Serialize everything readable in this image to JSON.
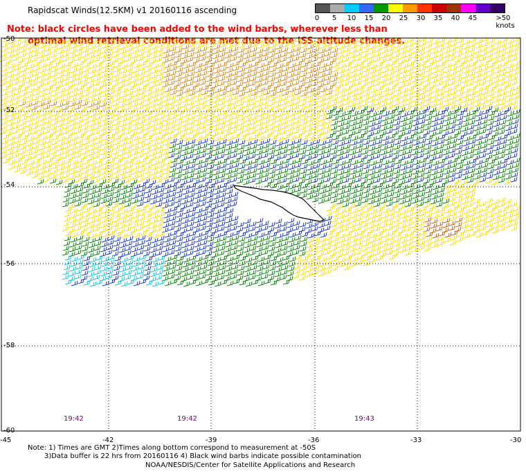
{
  "title": "Rapidscat Winds(12.5KM) v1 20160116 ascending",
  "note_line1": "Note: black circles have been added to the wind barbs, wherever less than",
  "note_line2": "optimal wind retrieval conditions are met due to the ISS altitude changes.",
  "legend": {
    "labels": [
      "0",
      "5",
      "10",
      "15",
      "20",
      "25",
      "30",
      "35",
      "40",
      "45",
      ">50 knots"
    ],
    "colors": [
      "#555555",
      "#aaaaaa",
      "#00ccff",
      "#3366ff",
      "#009900",
      "#ffff00",
      "#ff9900",
      "#ff3300",
      "#cc0000",
      "#993300",
      "#ff00ff",
      "#6600cc",
      "#330066"
    ]
  },
  "lat_labels": [
    "-50",
    "-52",
    "-54",
    "-56",
    "-58",
    "-60"
  ],
  "lon_labels": [
    "-45",
    "-42",
    "-39",
    "-36",
    "-33",
    "-30"
  ],
  "time_labels": [
    "19:42",
    "19:42",
    "19:43"
  ],
  "footer_line1": "Note: 1) Times are GMT 2)Times along bottom correspond to measurement at -50S",
  "footer_line2": "3)Data buffer is 22 hrs from 20160116 4) Black wind barbs indicate possible contamination",
  "footer_line3": "NOAA/NESDIS/Center for Satellite Applications and Research"
}
